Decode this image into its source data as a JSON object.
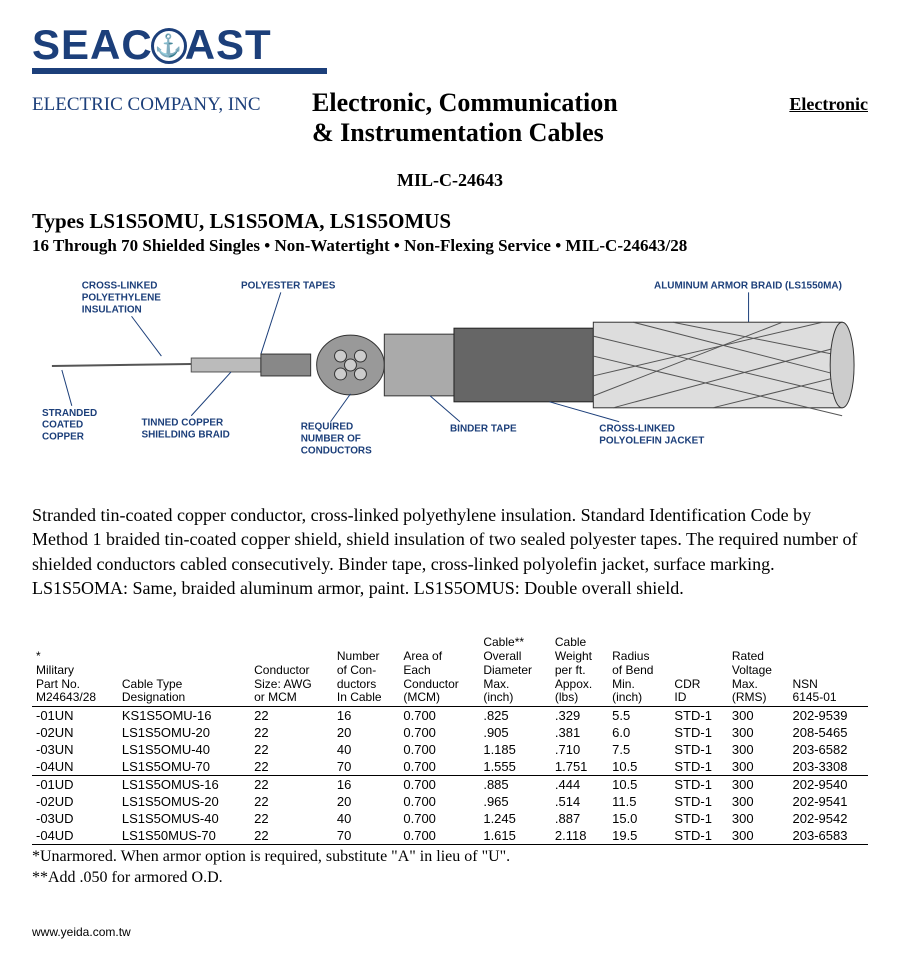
{
  "brand": {
    "name_left": "SEAC",
    "name_right": "AST",
    "color": "#1c3f7a"
  },
  "company": "ELECTRIC COMPANY, INC",
  "title_line1": "Electronic, Communication",
  "title_line2": "& Instrumentation Cables",
  "right_link": "Electronic",
  "spec_number": "MIL-C-24643",
  "types_heading": "Types LS1S5OMU, LS1S5OMA, LS1S5OMUS",
  "subheading": "16 Through 70 Shielded Singles • Non-Watertight  • Non-Flexing Service • MIL-C-24643/28",
  "diagram_labels": {
    "xlpe": "CROSS-LINKED\nPOLYETHYLENE\nINSULATION",
    "poly_tapes": "POLYESTER TAPES",
    "armor": "ALUMINUM ARMOR BRAID (LS1550MA)",
    "stranded": "STRANDED\nCOATED\nCOPPER",
    "tinned": "TINNED COPPER\nSHIELDING BRAID",
    "required": "REQUIRED\nNUMBER OF\nCONDUCTORS",
    "binder": "BINDER TAPE",
    "xl_jacket": "CROSS-LINKED\nPOLYOLEFIN JACKET"
  },
  "body_paragraph": "Stranded tin-coated copper conductor, cross-linked polyethylene insulation. Standard Identification Code by Method 1 braided tin-coated copper shield, shield insulation of two sealed polyester tapes. The required number of shielded conductors cabled consecutively. Binder tape, cross-linked polyolefin jacket, surface marking. LS1S5OMA: Same, braided aluminum armor, paint. LS1S5OMUS: Double overall shield.",
  "table": {
    "headers": [
      "*\nMilitary\nPart No.\nM24643/28",
      "Cable Type\nDesignation",
      "Conductor\nSize: AWG\nor MCM",
      "Number\nof Con-\nductors\nIn Cable",
      "Area of\nEach\nConductor\n(MCM)",
      "Cable**\nOverall\nDiameter\nMax.\n(inch)",
      "Cable\nWeight\nper ft.\nAppox.\n(lbs)",
      "Radius\nof Bend\nMin.\n(inch)",
      "CDR\nID",
      "Rated\nVoltage\nMax.\n(RMS)",
      "NSN\n6145-01"
    ],
    "rows": [
      [
        "-01UN",
        "KS1S5OMU-16",
        "22",
        "16",
        "0.700",
        ".825",
        ".329",
        "5.5",
        "STD-1",
        "300",
        "202-9539"
      ],
      [
        "-02UN",
        "LS1S5OMU-20",
        "22",
        "20",
        "0.700",
        ".905",
        ".381",
        "6.0",
        "STD-1",
        "300",
        "208-5465"
      ],
      [
        "-03UN",
        "LS1S5OMU-40",
        "22",
        "40",
        "0.700",
        "1.185",
        ".710",
        "7.5",
        "STD-1",
        "300",
        "203-6582"
      ],
      [
        "-04UN",
        "LS1S5OMU-70",
        "22",
        "70",
        "0.700",
        "1.555",
        "1.751",
        "10.5",
        "STD-1",
        "300",
        "203-3308"
      ],
      [
        "-01UD",
        "LS1S5OMUS-16",
        "22",
        "16",
        "0.700",
        ".885",
        ".444",
        "10.5",
        "STD-1",
        "300",
        "202-9540"
      ],
      [
        "-02UD",
        "LS1S5OMUS-20",
        "22",
        "20",
        "0.700",
        ".965",
        ".514",
        "11.5",
        "STD-1",
        "300",
        "202-9541"
      ],
      [
        "-03UD",
        "LS1S5OMUS-40",
        "22",
        "40",
        "0.700",
        "1.245",
        ".887",
        "15.0",
        "STD-1",
        "300",
        "202-9542"
      ],
      [
        "-04UD",
        "LS1S50MUS-70",
        "22",
        "70",
        "0.700",
        "1.615",
        "2.118",
        "19.5",
        "STD-1",
        "300",
        "203-6583"
      ]
    ],
    "section_break_after": 3
  },
  "footnote1": "*Unarmored. When armor option is required, substitute \"A\"  in lieu of \"U\".",
  "footnote2": "**Add .050 for armored O.D.",
  "site_url": "www.yeida.com.tw"
}
